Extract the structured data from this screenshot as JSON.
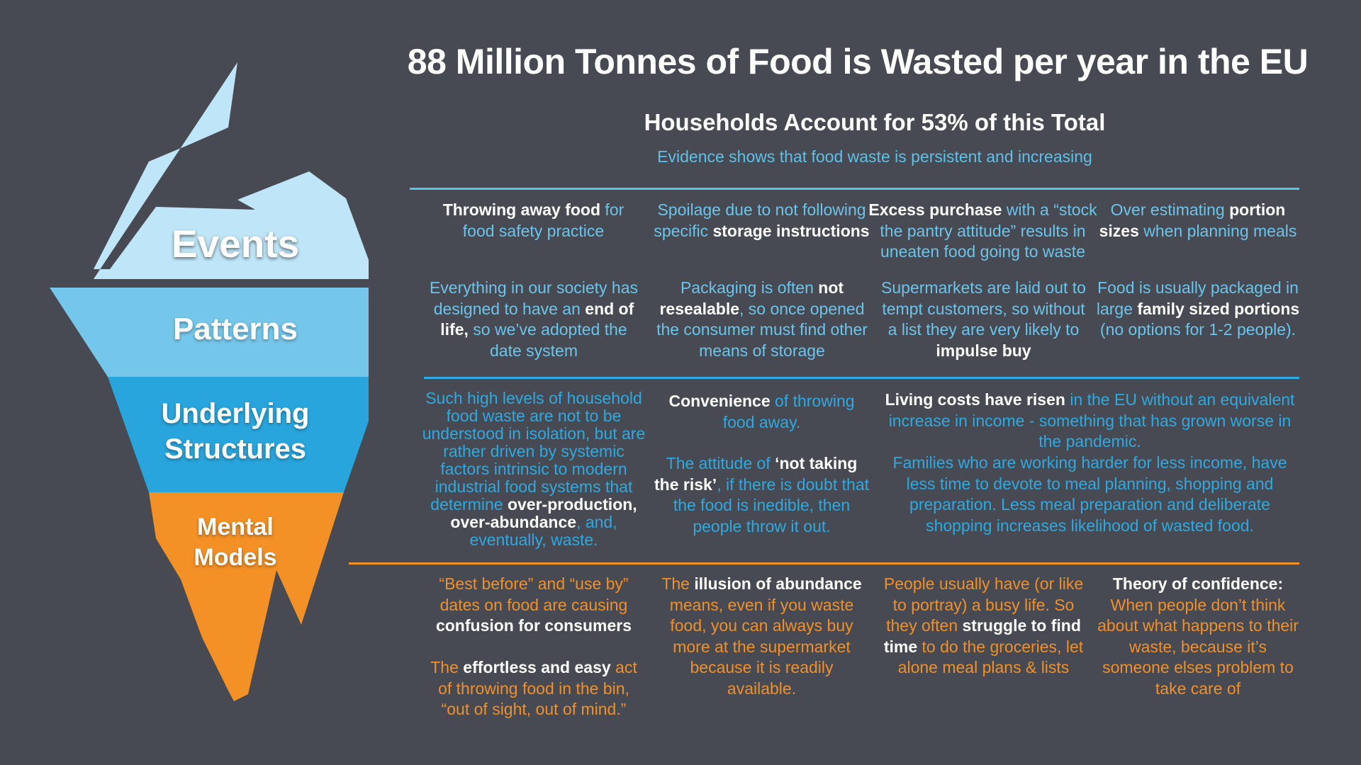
{
  "header": {
    "title": "88 Million Tonnes of Food is Wasted per year in the EU",
    "subtitle": "Households Account for 53% of this Total",
    "evidence": "Evidence shows that food waste is persistent and increasing"
  },
  "iceberg": {
    "events": "Events",
    "patterns": "Patterns",
    "underlying_1": "Underlying",
    "underlying_2": "Structures",
    "mental_1": "Mental",
    "mental_2": "Models"
  },
  "colors": {
    "background": "#474a52",
    "events_blue": "#bfe6f8",
    "patterns_blue": "#74c6ea",
    "structures_blue": "#28a5dc",
    "mental_orange": "#f39126"
  },
  "events": [
    {
      "b1": "Throwing away food",
      "t1": " for food safety practice"
    },
    {
      "t1": "Spoilage due to not following specific ",
      "b1": "storage instructions"
    },
    {
      "b1": "Excess purchase",
      "t1": " with a “stock the pantry attitude” results in uneaten food going to waste"
    },
    {
      "t1": "Over estimating ",
      "b1": "portion sizes",
      "t2": " when planning meals"
    }
  ],
  "patterns": [
    {
      "t1": "Everything in our society has designed to have an ",
      "b1": "end of life,",
      "t2": " so we’ve adopted the date system"
    },
    {
      "t1": "Packaging is often ",
      "b1": "not resealable",
      "t2": ", so once opened the consumer must find other means of storage"
    },
    {
      "t1": "Supermarkets are laid out to tempt customers, so without a list they are very likely to ",
      "b1": "impulse buy"
    },
    {
      "t1": "Food is usually packaged in large ",
      "b1": "family sized portions",
      "t2": " (no options for 1-2 people)."
    }
  ],
  "structures": {
    "col1": {
      "t1": "Such high levels of household food waste are not to be understood in isolation, but are rather driven by systemic factors intrinsic to modern industrial food systems that determine ",
      "b1": "over-production, over-abundance",
      "t2": ", and, eventually, waste."
    },
    "col2a": {
      "b1": "Convenience",
      "t1": " of throwing food away."
    },
    "col2b": {
      "t1": "The attitude of ",
      "b1": "‘not taking the risk’",
      "t2": ", if there is doubt that the food is inedible, then people throw it out."
    },
    "col3a": {
      "b1": "Living costs have risen",
      "t1": " in the EU without an equivalent increase in income - something that has grown worse in the pandemic."
    },
    "col3b": {
      "t1": "Families who are working harder for less income, have less time to devote to meal planning, shopping and preparation. Less meal preparation and deliberate shopping increases likelihood of wasted food."
    }
  },
  "mental": [
    {
      "t1": "“Best before” and “use by” dates on food are causing ",
      "b1": "confusion for consumers"
    },
    {
      "t1": "The ",
      "b1": "illusion of abundance",
      "t2": " means, even if you waste food, you can always buy more at the supermarket because it is readily available."
    },
    {
      "t1": "People usually have (or like to portray) a busy life. So they often ",
      "b1": "struggle to find time",
      "t2": " to do the groceries, let alone meal plans & lists"
    },
    {
      "b1": "Theory of confidence:",
      "t1": " When people don’t think about what happens to their waste, because it’s someone elses problem to take care of"
    }
  ],
  "mental_extra": {
    "t1": "The ",
    "b1": "effortless and easy",
    "t2": " act of throwing food in the bin, “out of sight, out of mind.”"
  }
}
